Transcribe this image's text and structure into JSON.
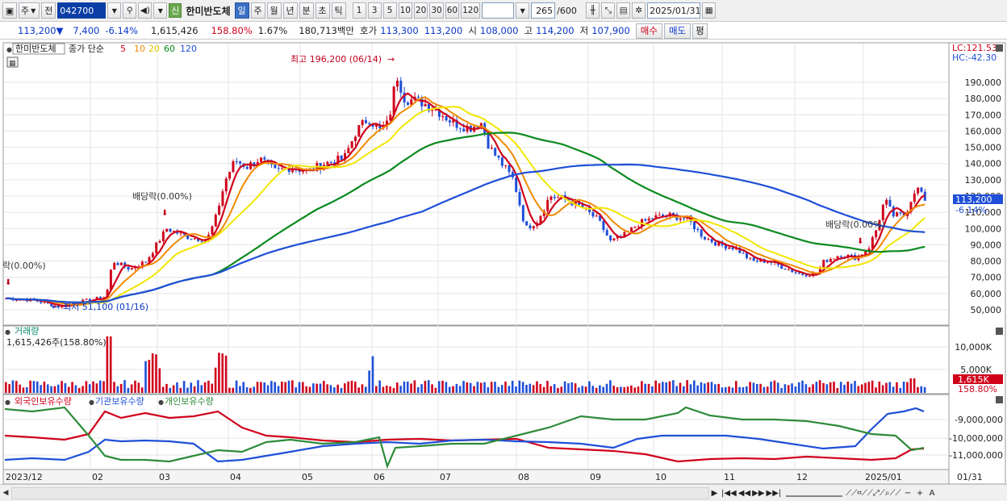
{
  "toolbar": {
    "market_type": "주",
    "prev_label": "전",
    "code": "042700",
    "badge": "신",
    "stock_name": "한미반도체",
    "period_buttons": [
      "일",
      "주",
      "월",
      "년",
      "분",
      "초",
      "틱"
    ],
    "active_period": "일",
    "interval_buttons": [
      "1",
      "3",
      "5",
      "10",
      "20",
      "30",
      "60",
      "120"
    ],
    "count_value": "265",
    "count_max": "/600",
    "date": "2025/01/31"
  },
  "infobar": {
    "price": "113,200",
    "change_arrow": "▼",
    "change": "7,400",
    "change_pct": "-6.14%",
    "volume": "1,615,426",
    "volume_ratio": "158.80%",
    "turnover": "1.67%",
    "amount": "180,713백만",
    "ask_label": "호가",
    "ask": "113,300",
    "bid": "113,200",
    "open_label": "시",
    "open": "108,000",
    "high_label": "고",
    "high": "114,200",
    "low_label": "저",
    "low": "107,900",
    "buy_label": "매수",
    "sell_label": "매도",
    "eval_label": "평"
  },
  "price_panel": {
    "title": "한미반도체",
    "legend_label": "종가 단순",
    "ma_periods": [
      "5",
      "10",
      "20",
      "60",
      "120"
    ],
    "ma_colors": [
      "#d0021b",
      "#f08a00",
      "#f2e600",
      "#0a8a1e",
      "#1f4fd8"
    ],
    "lc_label": "LC:121.53",
    "hc_label": "HC:-42.30",
    "y_ticks": [
      "190,000",
      "180,000",
      "170,000",
      "160,000",
      "150,000",
      "140,000",
      "130,000",
      "120,000",
      "110,000",
      "100,000",
      "90,000",
      "80,000",
      "70,000",
      "60,000",
      "50,000"
    ],
    "current_price_tag": "113,200",
    "current_pct_tag": "-6.14%",
    "annotations": {
      "high_label": "최고 196,200 (06/14)",
      "low_label": "최저 51,100 (01/16)",
      "div1": "배당락(0.00%)",
      "div2": "락(0.00%)",
      "div3": "배당락(0.00%)"
    }
  },
  "volume_panel": {
    "title": "거래량",
    "summary": "1,615,426주(158.80%)",
    "y_ticks": [
      "10,000K",
      "5,000K"
    ],
    "tag_value": "1,615K",
    "tag_pct": "158.80%"
  },
  "holdings_panel": {
    "legend": [
      {
        "label": "외국인보유수량",
        "color": "#d0021b"
      },
      {
        "label": "기관보유수량",
        "color": "#1f4fd8"
      },
      {
        "label": "개인보유수량",
        "color": "#2e8b3a"
      }
    ],
    "y_ticks": [
      "-9,000,000",
      "-10,000,000",
      "-11,000,000"
    ]
  },
  "x_axis": {
    "labels": [
      "2023/12",
      "02",
      "03",
      "04",
      "05",
      "06",
      "07",
      "08",
      "09",
      "10",
      "11",
      "12",
      "2025/01"
    ],
    "right_label": "01/31"
  },
  "scrollbar": {
    "controls": [
      "▶",
      "|◀◀",
      "◀◀",
      "▶▶",
      "▶▶|"
    ],
    "zoom_controls": [
      "−",
      "+",
      "A"
    ]
  }
}
